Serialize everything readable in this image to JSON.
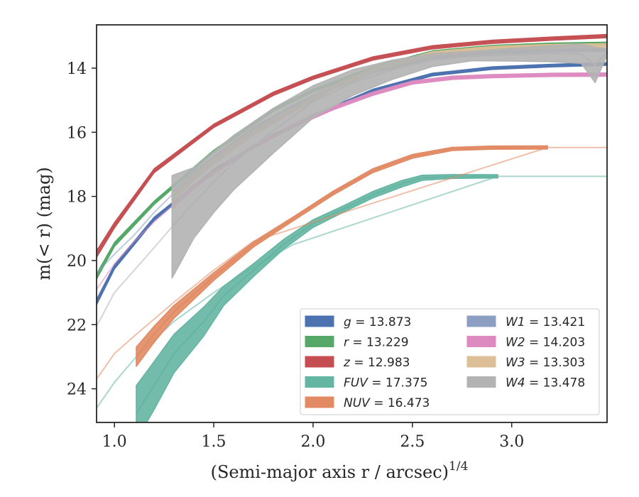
{
  "chart_data": {
    "type": "line",
    "xlabel": "(Semi-major axis r / arcsec)",
    "xlabel_exponent": "1/4",
    "ylabel": "m(< r) (mag)",
    "xlim": [
      0.91,
      3.48
    ],
    "ylim": [
      25.05,
      12.65
    ],
    "x_ticks": [
      1.0,
      1.5,
      2.0,
      2.5,
      3.0
    ],
    "x_tick_labels": [
      "1.0",
      "1.5",
      "2.0",
      "2.5",
      "3.0"
    ],
    "y_ticks": [
      14,
      16,
      18,
      20,
      22,
      24
    ],
    "y_tick_labels": [
      "14",
      "16",
      "18",
      "20",
      "22",
      "24"
    ],
    "grid": false,
    "legend_position": "lower right",
    "series": [
      {
        "name": "g = 13.873",
        "legend_var": "g",
        "legend_value": "13.873",
        "color": "#4c72b0",
        "x": [
          0.91,
          1.0,
          1.2,
          1.5,
          1.8,
          2.0,
          2.3,
          2.6,
          2.9,
          3.2,
          3.48
        ],
        "y": [
          21.3,
          20.2,
          18.7,
          17.2,
          16.1,
          15.5,
          14.7,
          14.2,
          14.0,
          13.92,
          13.87
        ],
        "band": [
          0.08,
          0.06,
          0.05,
          0.04,
          0.04,
          0.04,
          0.04,
          0.04,
          0.04,
          0.04,
          0.04
        ],
        "ext_x": [],
        "ext_y": []
      },
      {
        "name": "r = 13.229",
        "legend_var": "r",
        "legend_value": "13.229",
        "color": "#55a868",
        "x": [
          0.91,
          1.0,
          1.2,
          1.5,
          1.8,
          2.0,
          2.3,
          2.6,
          2.9,
          3.2,
          3.48
        ],
        "y": [
          20.5,
          19.5,
          18.2,
          16.6,
          15.3,
          14.7,
          14.0,
          13.5,
          13.33,
          13.26,
          13.23
        ],
        "band": [
          0.08,
          0.06,
          0.05,
          0.04,
          0.04,
          0.04,
          0.04,
          0.04,
          0.04,
          0.04,
          0.04
        ],
        "ext_x": [],
        "ext_y": []
      },
      {
        "name": "z = 12.983",
        "legend_var": "z",
        "legend_value": "12.983",
        "color": "#c44e52",
        "x": [
          0.91,
          1.0,
          1.2,
          1.5,
          1.8,
          2.0,
          2.3,
          2.6,
          2.9,
          3.2,
          3.48
        ],
        "y": [
          19.8,
          18.9,
          17.2,
          15.8,
          14.8,
          14.3,
          13.7,
          13.35,
          13.18,
          13.08,
          13.0
        ],
        "band": [
          0.1,
          0.08,
          0.06,
          0.05,
          0.05,
          0.05,
          0.05,
          0.05,
          0.05,
          0.05,
          0.05
        ],
        "ext_x": [],
        "ext_y": []
      },
      {
        "name": "FUV = 17.375",
        "legend_var": "FUV",
        "legend_value": "17.375",
        "color": "#64b5a2",
        "x": [
          1.11,
          1.2,
          1.3,
          1.45,
          1.55,
          1.7,
          1.85,
          2.0,
          2.15,
          2.3,
          2.45,
          2.55,
          2.7,
          2.93
        ],
        "y": [
          24.75,
          23.9,
          22.9,
          21.9,
          21.1,
          20.3,
          19.5,
          18.85,
          18.4,
          17.95,
          17.6,
          17.42,
          17.38,
          17.375
        ],
        "band": [
          0.85,
          0.75,
          0.6,
          0.45,
          0.3,
          0.2,
          0.15,
          0.12,
          0.1,
          0.1,
          0.1,
          0.08,
          0.06,
          0.05
        ],
        "ext_x": [
          0.91,
          1.0,
          1.11,
          1.3,
          1.5,
          1.7,
          1.9,
          2.93,
          3.2,
          3.48
        ],
        "ext_y": [
          24.6,
          23.8,
          23.0,
          21.9,
          21.0,
          20.2,
          19.5,
          17.375,
          17.375,
          17.375
        ]
      },
      {
        "name": "NUV = 16.473",
        "legend_var": "NUV",
        "legend_value": "16.473",
        "color": "#e18a63",
        "x": [
          1.11,
          1.2,
          1.3,
          1.5,
          1.7,
          1.9,
          2.1,
          2.3,
          2.5,
          2.7,
          2.9,
          3.18
        ],
        "y": [
          23.0,
          22.3,
          21.6,
          20.5,
          19.5,
          18.7,
          17.9,
          17.2,
          16.75,
          16.52,
          16.48,
          16.473
        ],
        "band": [
          0.3,
          0.25,
          0.2,
          0.12,
          0.08,
          0.06,
          0.06,
          0.06,
          0.06,
          0.05,
          0.05,
          0.05
        ],
        "ext_x": [
          0.91,
          1.0,
          1.11,
          1.3,
          1.5,
          1.7,
          3.18,
          3.48
        ],
        "ext_y": [
          23.7,
          22.9,
          22.3,
          21.3,
          20.3,
          19.4,
          16.473,
          16.473
        ]
      },
      {
        "name": "W1 = 13.421",
        "legend_var": "W1",
        "legend_value": "13.421",
        "color": "#8c9ec2",
        "x": [
          1.29,
          1.4,
          1.5,
          1.7,
          1.9,
          2.1,
          2.3,
          2.6,
          2.9,
          3.2,
          3.48
        ],
        "y": [
          17.95,
          17.3,
          16.8,
          15.9,
          15.2,
          14.6,
          14.1,
          13.65,
          13.5,
          13.44,
          13.42
        ],
        "band": [
          0.08,
          0.06,
          0.05,
          0.05,
          0.05,
          0.05,
          0.05,
          0.05,
          0.05,
          0.05,
          0.05
        ],
        "ext_x": [
          0.91,
          1.0,
          1.1,
          1.2,
          1.29
        ],
        "ext_y": [
          20.4,
          19.8,
          19.2,
          18.5,
          17.95
        ]
      },
      {
        "name": "W2 = 14.203",
        "legend_var": "W2",
        "legend_value": "14.203",
        "color": "#dd8ac0",
        "x": [
          1.29,
          1.4,
          1.5,
          1.7,
          1.9,
          2.1,
          2.3,
          2.5,
          2.7,
          2.9,
          3.2,
          3.48
        ],
        "y": [
          18.3,
          17.7,
          17.25,
          16.45,
          15.8,
          15.25,
          14.8,
          14.45,
          14.3,
          14.25,
          14.21,
          14.2
        ],
        "band": [
          0.08,
          0.06,
          0.05,
          0.05,
          0.05,
          0.05,
          0.05,
          0.05,
          0.05,
          0.05,
          0.05,
          0.05
        ],
        "ext_x": [
          0.91,
          1.0,
          1.1,
          1.2,
          1.29
        ],
        "ext_y": [
          20.9,
          20.1,
          19.4,
          18.8,
          18.3
        ]
      },
      {
        "name": "W3 = 13.303",
        "legend_var": "W3",
        "legend_value": "13.303",
        "color": "#dcbf96",
        "x": [
          1.29,
          1.4,
          1.5,
          1.7,
          1.9,
          2.1,
          2.3,
          2.6,
          2.9,
          3.2,
          3.48
        ],
        "y": [
          18.05,
          17.4,
          16.9,
          16.0,
          15.3,
          14.6,
          14.05,
          13.55,
          13.38,
          13.32,
          13.3
        ],
        "band": [
          0.12,
          0.1,
          0.09,
          0.08,
          0.07,
          0.06,
          0.06,
          0.06,
          0.06,
          0.06,
          0.06
        ],
        "ext_x": [],
        "ext_y": []
      },
      {
        "name": "W4 = 13.478",
        "legend_var": "W4",
        "legend_value": "13.478",
        "color": "#b3b3b3",
        "x": [
          1.29,
          1.4,
          1.5,
          1.6,
          1.8,
          2.0,
          2.2,
          2.4,
          2.6,
          2.8,
          3.0,
          3.2,
          3.35,
          3.42,
          3.48
        ],
        "y": [
          18.95,
          18.2,
          17.55,
          16.95,
          15.95,
          15.05,
          14.45,
          14.05,
          13.75,
          13.62,
          13.58,
          13.55,
          13.55,
          13.9,
          13.5
        ],
        "band": [
          1.6,
          1.1,
          0.95,
          0.85,
          0.7,
          0.5,
          0.4,
          0.3,
          0.2,
          0.15,
          0.2,
          0.25,
          0.3,
          0.55,
          0.1
        ],
        "ext_x": [
          0.91,
          1.0,
          1.1,
          1.2,
          1.29
        ],
        "ext_y": [
          22.05,
          21.0,
          20.3,
          19.6,
          18.95
        ]
      }
    ]
  }
}
